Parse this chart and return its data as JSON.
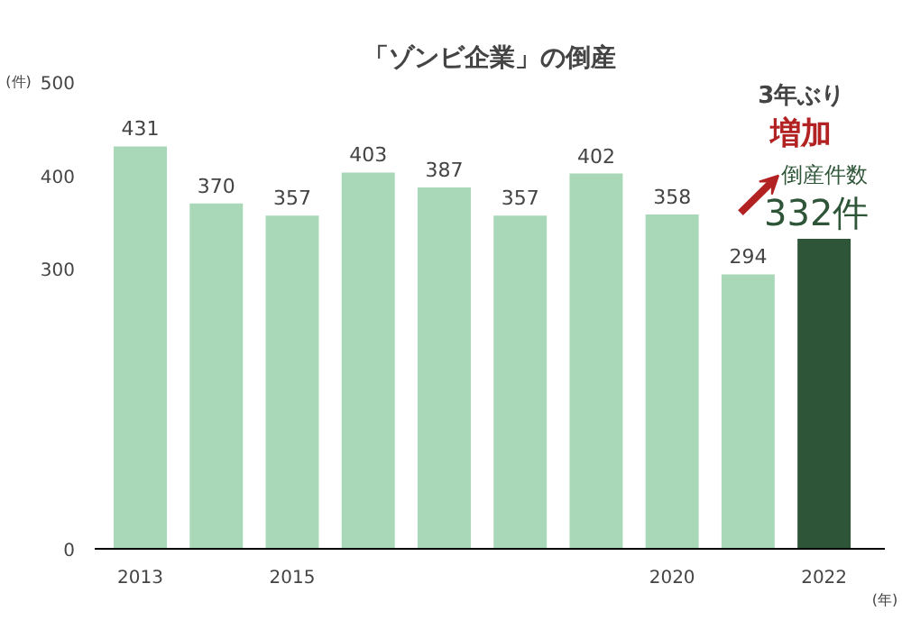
{
  "chart_data": {
    "type": "bar",
    "title": "「ゾンビ企業」の倒産",
    "ylabel": "(件)",
    "xlabel": "(年)",
    "categories": [
      "2013",
      null,
      "2015",
      null,
      null,
      null,
      null,
      "2020",
      null,
      "2022"
    ],
    "values": [
      431,
      370,
      357,
      403,
      387,
      357,
      402,
      358,
      294,
      332
    ],
    "colors": [
      "#a9d8b8",
      "#a9d8b8",
      "#a9d8b8",
      "#a9d8b8",
      "#a9d8b8",
      "#a9d8b8",
      "#a9d8b8",
      "#a9d8b8",
      "#a9d8b8",
      "#2f5538"
    ],
    "value_labels": [
      "431",
      "370",
      "357",
      "403",
      "387",
      "357",
      "402",
      "358",
      "294",
      null
    ],
    "ylim": [
      0,
      500
    ],
    "yticks": [
      0,
      300,
      400,
      500
    ],
    "grid": false,
    "annotations": [
      "3年ぶり",
      "増加",
      "倒産件数",
      "332件"
    ]
  }
}
